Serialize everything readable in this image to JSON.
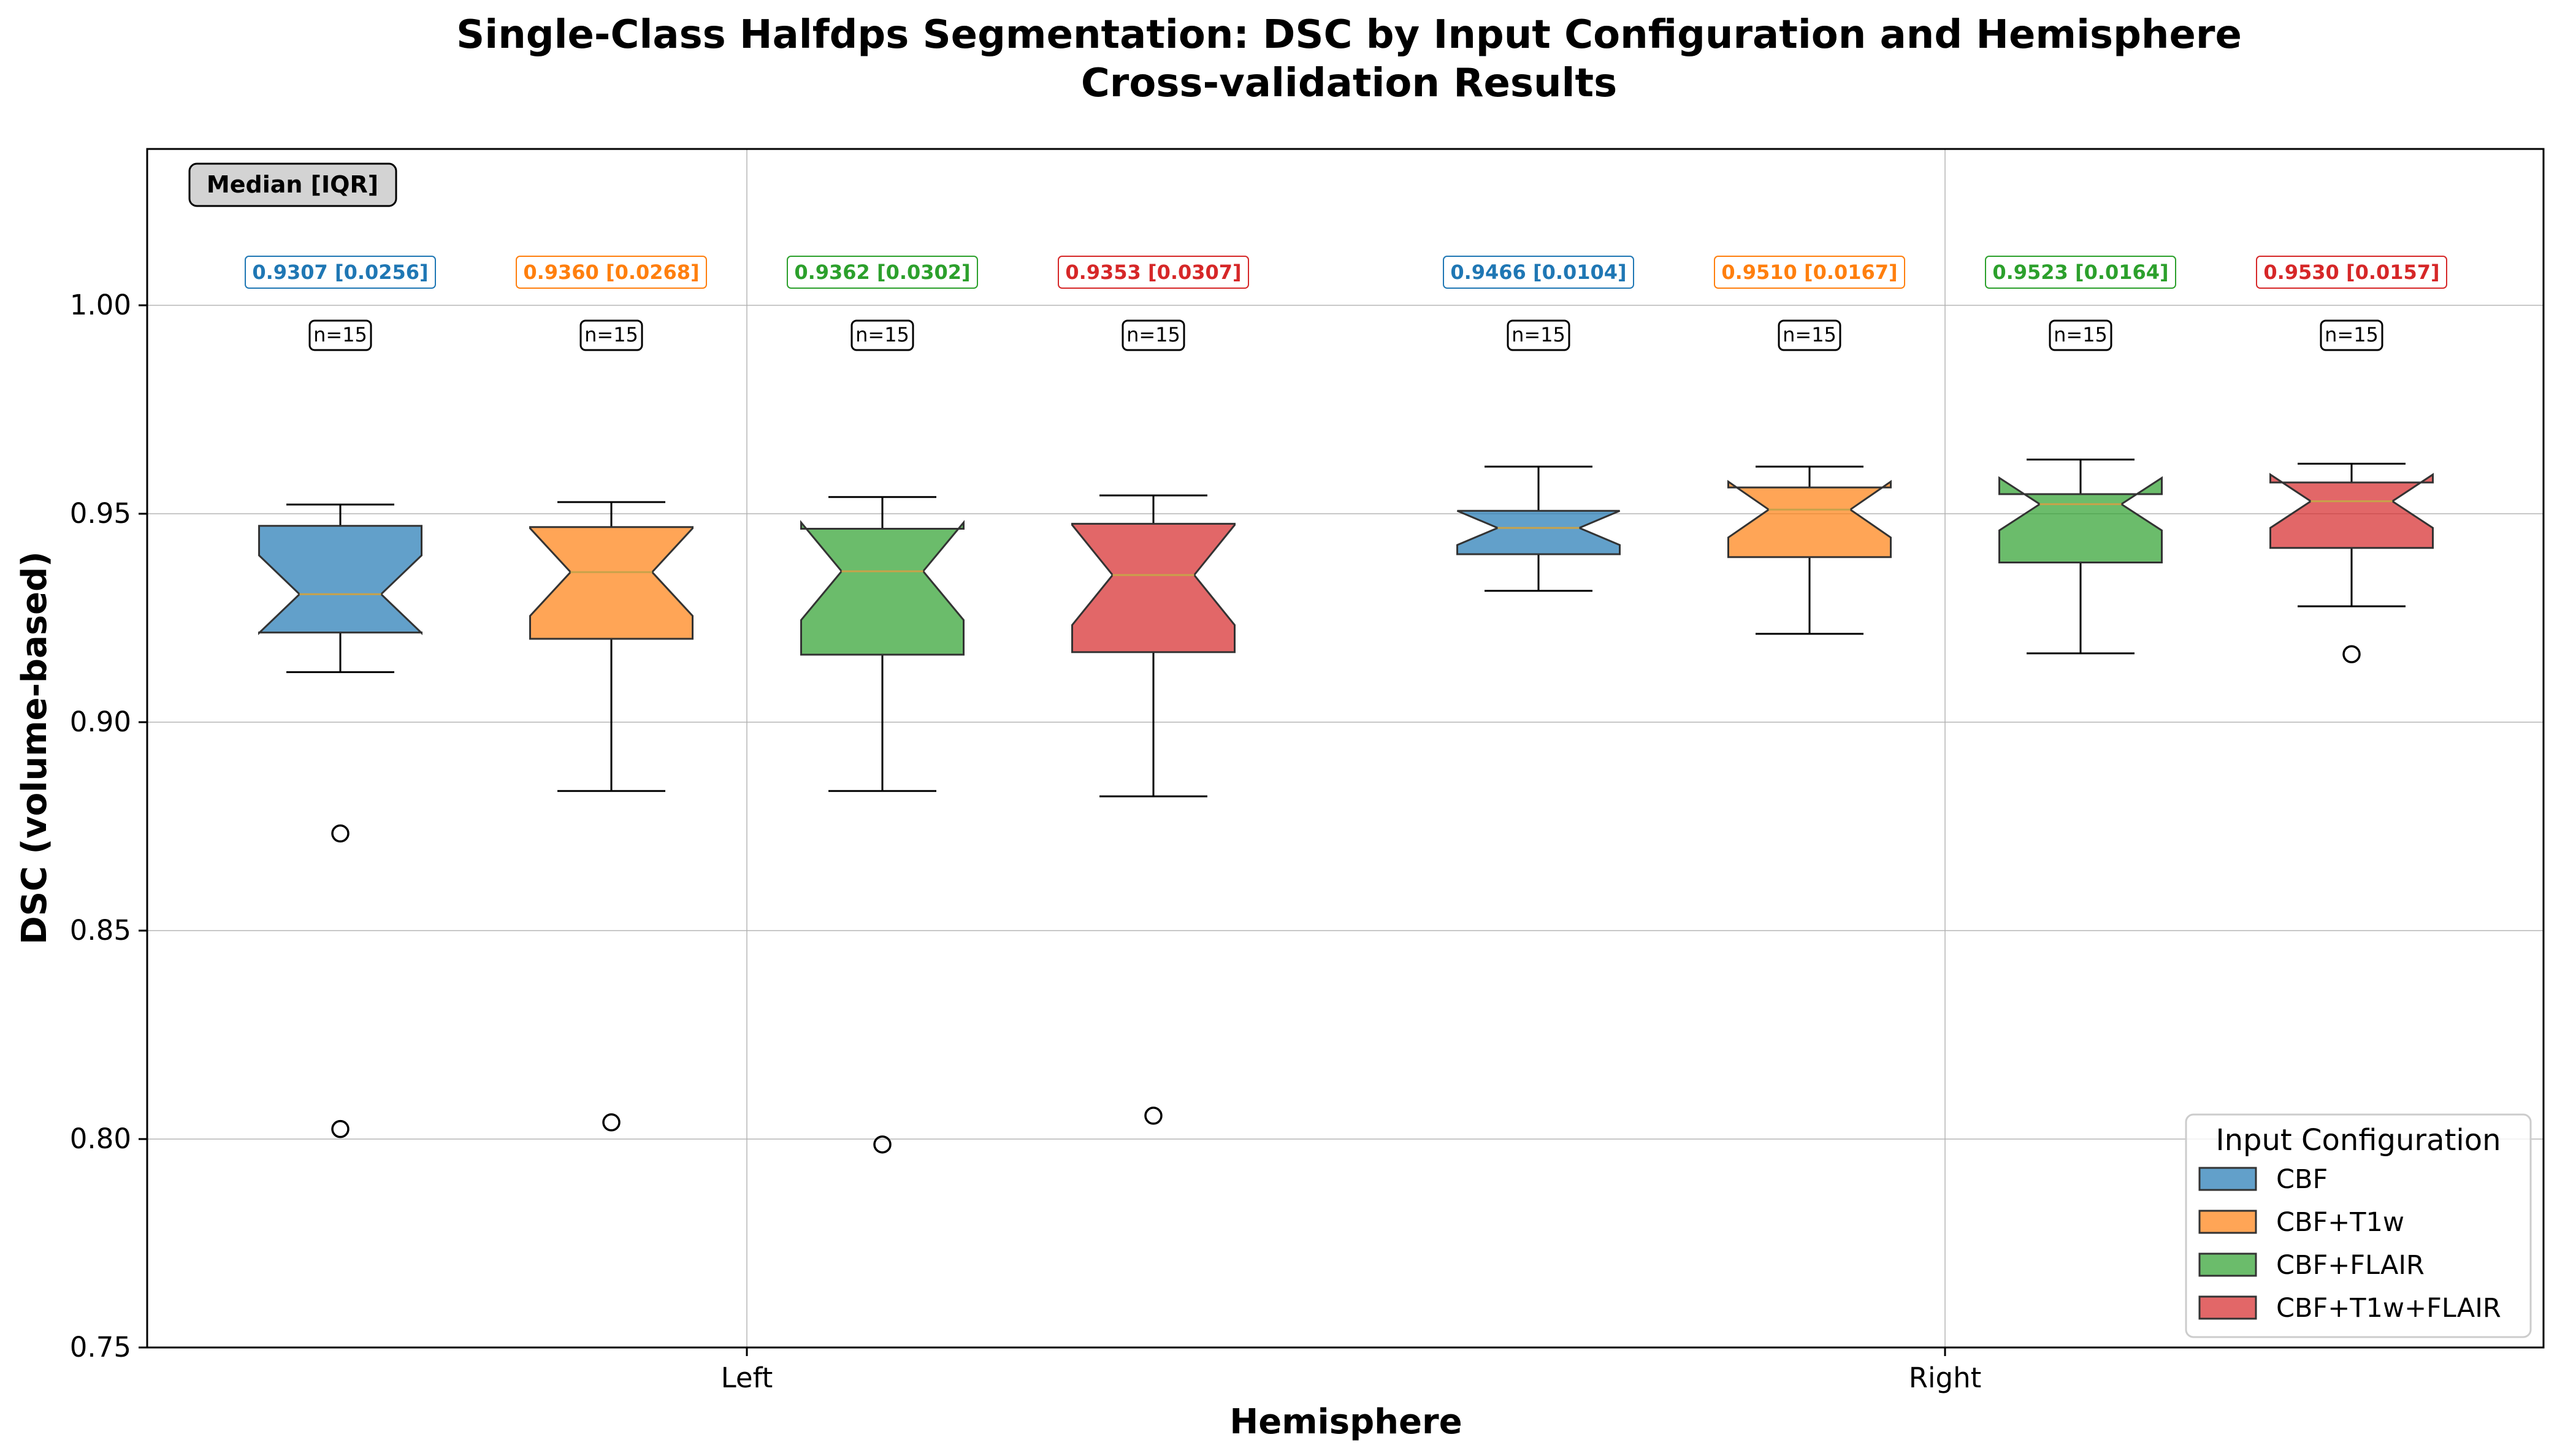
{
  "chart_data": {
    "type": "box",
    "title": "Single-Class Halfdps Segmentation: DSC by Input Configuration and Hemisphere",
    "subtitle": "Cross-validation Results",
    "xlabel": "Hemisphere",
    "ylabel": "DSC (volume-based)",
    "ylim": [
      0.75,
      1.038
    ],
    "yticks": [
      "0.75",
      "0.80",
      "0.85",
      "0.90",
      "0.95",
      "1.00"
    ],
    "categories": [
      "Left",
      "Right"
    ],
    "grid": true,
    "annotation": "Median [IQR]",
    "legend": {
      "title": "Input Configuration",
      "position": "lower-right"
    },
    "series": [
      {
        "name": "CBF",
        "color": "#1f77b4",
        "boxes": [
          {
            "category": "Left",
            "whisker_low": 0.912,
            "q1": 0.9215,
            "median": 0.9307,
            "q3": 0.9471,
            "whisker_high": 0.9522,
            "notch": [
              0.9214,
              0.94
            ],
            "outliers": [
              0.8733,
              0.8024
            ],
            "label": "0.9307 [0.0256]",
            "n": "n=15"
          },
          {
            "category": "Right",
            "whisker_low": 0.9315,
            "q1": 0.9403,
            "median": 0.9466,
            "q3": 0.9507,
            "whisker_high": 0.9613,
            "notch": [
              0.9425,
              0.9507
            ],
            "outliers": [],
            "label": "0.9466 [0.0104]",
            "n": "n=15"
          }
        ]
      },
      {
        "name": "CBF+T1w",
        "color": "#ff7f0e",
        "boxes": [
          {
            "category": "Left",
            "whisker_low": 0.8835,
            "q1": 0.92,
            "median": 0.936,
            "q3": 0.9468,
            "whisker_high": 0.9528,
            "notch": [
              0.9255,
              0.9465
            ],
            "outliers": [
              0.804
            ],
            "label": "0.9360 [0.0268]",
            "n": "n=15"
          },
          {
            "category": "Right",
            "whisker_low": 0.9212,
            "q1": 0.9396,
            "median": 0.951,
            "q3": 0.9563,
            "whisker_high": 0.9613,
            "notch": [
              0.9443,
              0.9577
            ],
            "outliers": [],
            "label": "0.9510 [0.0167]",
            "n": "n=15"
          }
        ]
      },
      {
        "name": "CBF+FLAIR",
        "color": "#2ca02c",
        "boxes": [
          {
            "category": "Left",
            "whisker_low": 0.8835,
            "q1": 0.9162,
            "median": 0.9362,
            "q3": 0.9464,
            "whisker_high": 0.954,
            "notch": [
              0.9245,
              0.9479
            ],
            "outliers": [
              0.7987
            ],
            "label": "0.9362 [0.0302]",
            "n": "n=15"
          },
          {
            "category": "Right",
            "whisker_low": 0.9165,
            "q1": 0.9383,
            "median": 0.9523,
            "q3": 0.9547,
            "whisker_high": 0.963,
            "notch": [
              0.946,
              0.9586
            ],
            "outliers": [],
            "label": "0.9523 [0.0164]",
            "n": "n=15"
          }
        ]
      },
      {
        "name": "CBF+T1w+FLAIR",
        "color": "#d62728",
        "boxes": [
          {
            "category": "Left",
            "whisker_low": 0.8822,
            "q1": 0.9168,
            "median": 0.9353,
            "q3": 0.9476,
            "whisker_high": 0.9544,
            "notch": [
              0.9233,
              0.9473
            ],
            "outliers": [
              0.8056
            ],
            "label": "0.9353 [0.0307]",
            "n": "n=15"
          },
          {
            "category": "Right",
            "whisker_low": 0.9278,
            "q1": 0.9418,
            "median": 0.953,
            "q3": 0.9575,
            "whisker_high": 0.962,
            "notch": [
              0.9466,
              0.9594
            ],
            "outliers": [
              0.9163
            ],
            "label": "0.9530 [0.0157]",
            "n": "n=15"
          }
        ]
      }
    ]
  }
}
